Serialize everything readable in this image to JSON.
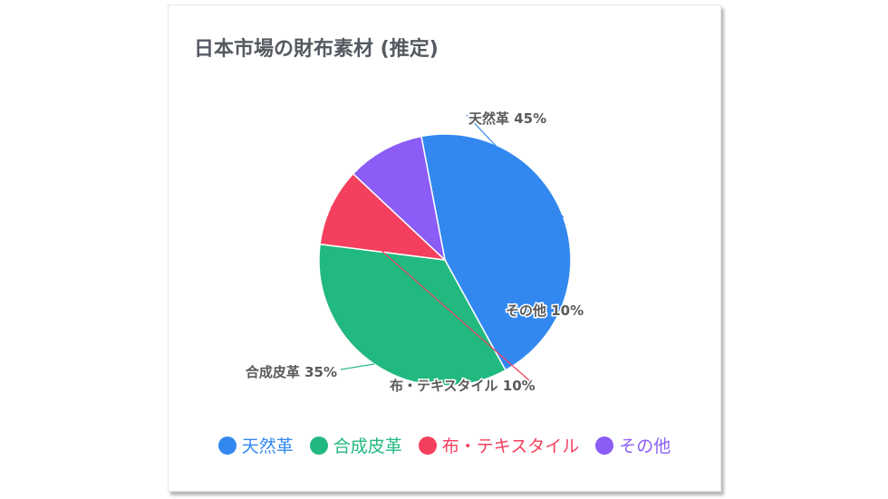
{
  "chart_data": {
    "type": "pie",
    "title": "日本市場の財布素材 (推定)",
    "categories": [
      "天然革",
      "合成皮革",
      "布・テキスタイル",
      "その他"
    ],
    "values": [
      45,
      35,
      10,
      10
    ],
    "unit": "%",
    "data_labels": [
      "天然革 45%",
      "合成皮革 35%",
      "布・テキスタイル 10%",
      "その他 10%"
    ],
    "colors": [
      "#3388f0",
      "#22b980",
      "#f43f5e",
      "#8b5cf6"
    ],
    "legend_position": "bottom"
  }
}
